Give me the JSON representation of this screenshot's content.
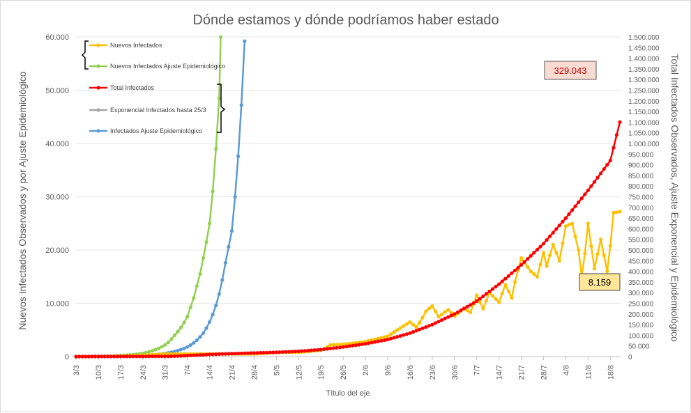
{
  "chart_data": {
    "type": "line",
    "title": "Dónde estamos y dónde podríamos haber estado",
    "xlabel": "Título del eje",
    "ylabel_left": "Nuevos Infectados Observados y por Ajuste Epidemiológico",
    "ylabel_right": "Total Infectados Observados, Ajuste Exponencial y Epidemiológico",
    "x_start": "3/3",
    "x_end": "21/8",
    "x_ticks": [
      "3/3",
      "10/3",
      "17/3",
      "24/3",
      "31/3",
      "7/4",
      "14/4",
      "21/4",
      "28/4",
      "5/5",
      "12/5",
      "19/5",
      "26/5",
      "2/6",
      "9/6",
      "16/6",
      "23/6",
      "30/6",
      "7/7",
      "14/7",
      "21/7",
      "28/7",
      "4/8",
      "11/8",
      "18/8"
    ],
    "y_left_ticks": [
      "0",
      "10.000",
      "20.000",
      "30.000",
      "40.000",
      "50.000",
      "60.000"
    ],
    "y_left_range": [
      0,
      60000
    ],
    "y_right_ticks": [
      "0",
      "50.000",
      "100.000",
      "150.000",
      "200.000",
      "250.000",
      "300.000",
      "350.000",
      "400.000",
      "450.000",
      "500.000",
      "550.000",
      "600.000",
      "650.000",
      "700.000",
      "750.000",
      "800.000",
      "850.000",
      "900.000",
      "950.000",
      "1.000.000",
      "1.050.000",
      "1.100.000",
      "1.150.000",
      "1.200.000",
      "1.250.000",
      "1.300.000",
      "1.350.000",
      "1.400.000",
      "1.450.000",
      "1.500.000"
    ],
    "y_right_range": [
      0,
      1500000
    ],
    "legend_placement": "top-left",
    "series": [
      {
        "name": "Nuevos Infectados",
        "axis": "left",
        "color": "#ffc000",
        "x": [
          "3/3",
          "10/3",
          "17/3",
          "24/3",
          "31/3",
          "7/4",
          "14/4",
          "21/4",
          "28/4",
          "5/5",
          "12/5",
          "19/5",
          "22/5",
          "26/5",
          "2/6",
          "9/6",
          "12/6",
          "16/6",
          "18/6",
          "21/6",
          "23/6",
          "25/6",
          "28/6",
          "30/6",
          "3/7",
          "5/7",
          "7/7",
          "9/7",
          "11/7",
          "14/7",
          "16/7",
          "18/7",
          "19/7",
          "21/7",
          "24/7",
          "26/7",
          "28/7",
          "29/7",
          "31/7",
          "2/8",
          "4/8",
          "6/8",
          "8/8",
          "9/8",
          "11/8",
          "13/8",
          "15/8",
          "17/8",
          "19/8",
          "21/8"
        ],
        "y": [
          0,
          20,
          80,
          250,
          500,
          500,
          500,
          500,
          500,
          800,
          800,
          1200,
          2200,
          2300,
          2800,
          3800,
          5000,
          6500,
          5500,
          8500,
          9500,
          7500,
          8800,
          7600,
          9000,
          8300,
          11500,
          9000,
          12000,
          10200,
          13500,
          11000,
          14000,
          18500,
          16000,
          15000,
          19500,
          17000,
          21000,
          18000,
          24500,
          25000,
          20000,
          15000,
          25000,
          16500,
          22000,
          16000,
          27000,
          27200
        ]
      },
      {
        "name": "Nuevos Infectados Ajuste Epidemiológico",
        "axis": "left",
        "color": "#92d050",
        "x": [
          "3/3",
          "10/3",
          "17/3",
          "24/3",
          "27/3",
          "31/3",
          "3/4",
          "7/4",
          "9/4",
          "11/4",
          "13/4",
          "14/4",
          "15/4",
          "16/4",
          "17/4",
          "17.5/4"
        ],
        "y": [
          0,
          50,
          200,
          600,
          1100,
          2200,
          4000,
          7500,
          11000,
          15500,
          21500,
          25000,
          31000,
          39000,
          48500,
          60000
        ]
      },
      {
        "name": "Total Infectados",
        "axis": "right",
        "color": "#ff0000",
        "x": [
          "3/3",
          "31/3",
          "7/4",
          "14/4",
          "21/4",
          "28/4",
          "5/5",
          "12/5",
          "19/5",
          "26/5",
          "2/6",
          "9/6",
          "16/6",
          "23/6",
          "30/6",
          "7/7",
          "14/7",
          "21/7",
          "28/7",
          "4/8",
          "11/8",
          "18/8",
          "21/8"
        ],
        "y": [
          0,
          1000,
          5000,
          10000,
          14000,
          17000,
          20000,
          25000,
          33000,
          45000,
          60000,
          80000,
          110000,
          150000,
          200000,
          260000,
          340000,
          430000,
          530000,
          650000,
          780000,
          920000,
          1100000
        ]
      },
      {
        "name": "Exponencial Infectados hasta 25/3",
        "axis": "right",
        "color": "#a5a5a5",
        "x": [
          "3/3",
          "10/3",
          "17/3",
          "24/3"
        ],
        "y": [
          0,
          200,
          1000,
          4000
        ]
      },
      {
        "name": "Infectados Ajuste Epidemiológico",
        "axis": "right",
        "color": "#5b9bd5",
        "x": [
          "3/3",
          "17/3",
          "24/3",
          "31/3",
          "7/4",
          "12/4",
          "16/4",
          "19/4",
          "21/4",
          "22/4",
          "23/4",
          "24/4",
          "25/4"
        ],
        "y": [
          0,
          1500,
          5000,
          15000,
          45000,
          110000,
          240000,
          440000,
          590000,
          750000,
          940000,
          1180000,
          1480000
        ]
      }
    ],
    "annotations": [
      "329.043",
      "8.159"
    ]
  }
}
